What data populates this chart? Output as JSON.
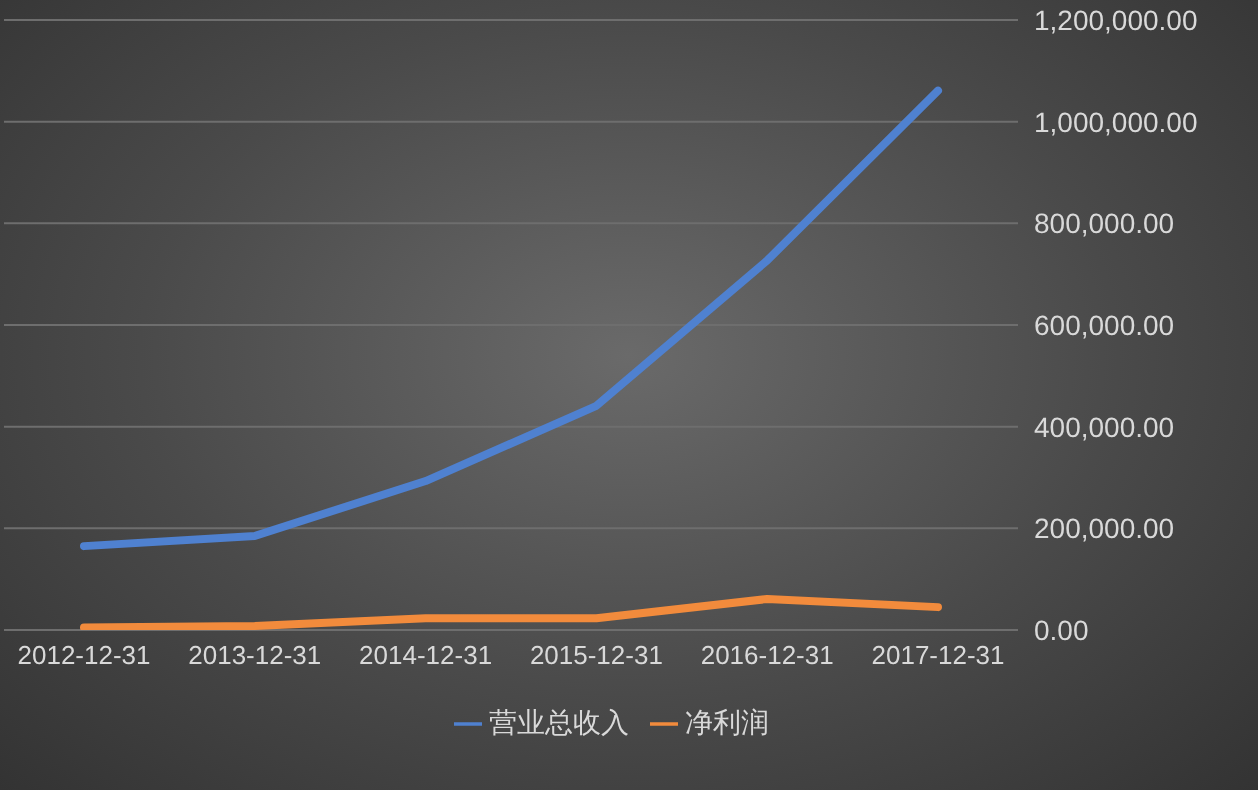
{
  "chart_data": {
    "type": "line",
    "categories": [
      "2012-12-31",
      "2013-12-31",
      "2014-12-31",
      "2015-12-31",
      "2016-12-31",
      "2017-12-31"
    ],
    "series": [
      {
        "name": "营业总收入",
        "color": "#4f81d0",
        "values": [
          165000,
          185000,
          293000,
          441000,
          727000,
          1061000
        ]
      },
      {
        "name": "净利润",
        "color": "#f28b3c",
        "values": [
          5000,
          8000,
          23000,
          23000,
          61000,
          45000
        ]
      }
    ],
    "ylim": [
      0,
      1200000
    ],
    "yticks": [
      {
        "value": 0,
        "label": "0.00"
      },
      {
        "value": 200000,
        "label": "200,000.00"
      },
      {
        "value": 400000,
        "label": "400,000.00"
      },
      {
        "value": 600000,
        "label": "600,000.00"
      },
      {
        "value": 800000,
        "label": "800,000.00"
      },
      {
        "value": 1000000,
        "label": "1,000,000.00"
      },
      {
        "value": 1200000,
        "label": "1,200,000.00"
      }
    ],
    "grid": "y",
    "legend": "bottom",
    "marker": "none",
    "line_style": "solid"
  }
}
